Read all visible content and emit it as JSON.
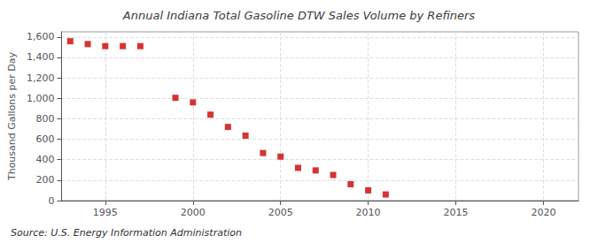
{
  "chart_data": {
    "type": "scatter",
    "title": "Annual Indiana Total Gasoline DTW Sales Volume by Refiners",
    "ylabel": "Thousand Gallons per Day",
    "annotations": [
      "Source: U.S. Energy Information Administration"
    ],
    "x": [
      1993,
      1994,
      1995,
      1996,
      1997,
      1999,
      2000,
      2001,
      2002,
      2003,
      2004,
      2005,
      2006,
      2007,
      2008,
      2009,
      2010,
      2011
    ],
    "values": [
      1558,
      1530,
      1510,
      1510,
      1510,
      1005,
      960,
      840,
      720,
      635,
      465,
      430,
      320,
      295,
      250,
      160,
      100,
      60
    ],
    "color": "#cc0000",
    "marker": "square",
    "xlim": [
      1992.5,
      2022
    ],
    "xticks": [
      1995,
      2000,
      2005,
      2010,
      2015,
      2020
    ],
    "ylim": [
      0,
      1650
    ],
    "yticks": [
      0,
      200,
      400,
      600,
      800,
      {
        "value": 1000,
        "label": "1,000"
      },
      {
        "value": 1200,
        "label": "1,200"
      },
      {
        "value": 1400,
        "label": "1,400"
      },
      {
        "value": 1600,
        "label": "1,600"
      }
    ],
    "grid": true
  }
}
